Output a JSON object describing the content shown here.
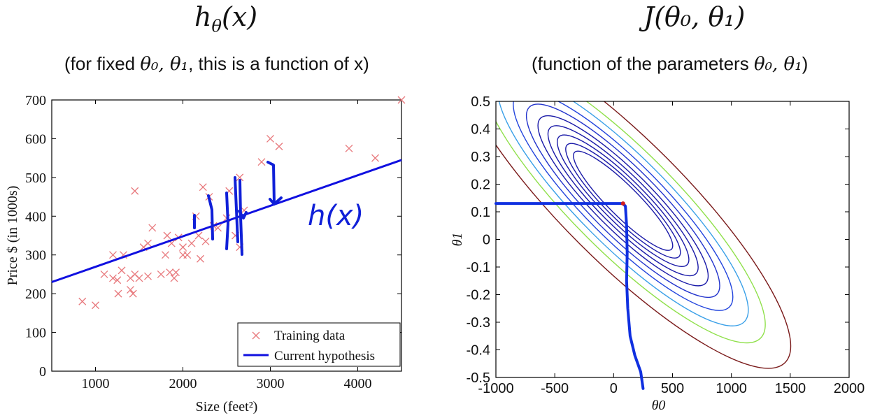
{
  "left": {
    "title": "hθ(x)",
    "subtitle_pre": "(for fixed ",
    "subtitle_theta": "θ₀, θ₁",
    "subtitle_post": ", this is a function of x)"
  },
  "right": {
    "title": "J(θ₀, θ₁)",
    "subtitle_pre": "(function of the parameters ",
    "subtitle_theta": "θ₀, θ₁",
    "subtitle_post": ")"
  },
  "chart_data": [
    {
      "type": "scatter",
      "xlabel": "Size (feet²)",
      "ylabel": "Price $ (in 1000s)",
      "xlim": [
        500,
        4500
      ],
      "ylim": [
        0,
        700
      ],
      "xticks": [
        1000,
        2000,
        3000,
        4000
      ],
      "yticks": [
        0,
        100,
        200,
        300,
        400,
        500,
        600,
        700
      ],
      "series": [
        {
          "name": "Training data",
          "marker": "x",
          "color": "#e8797d",
          "points": [
            [
              850,
              180
            ],
            [
              1000,
              170
            ],
            [
              1100,
              250
            ],
            [
              1200,
              300
            ],
            [
              1200,
              240
            ],
            [
              1250,
              235
            ],
            [
              1260,
              200
            ],
            [
              1300,
              260
            ],
            [
              1320,
              300
            ],
            [
              1400,
              210
            ],
            [
              1400,
              240
            ],
            [
              1430,
              200
            ],
            [
              1450,
              465
            ],
            [
              1450,
              250
            ],
            [
              1500,
              240
            ],
            [
              1550,
              320
            ],
            [
              1600,
              330
            ],
            [
              1600,
              245
            ],
            [
              1650,
              370
            ],
            [
              1750,
              250
            ],
            [
              1800,
              300
            ],
            [
              1820,
              350
            ],
            [
              1850,
              255
            ],
            [
              1870,
              330
            ],
            [
              1900,
              240
            ],
            [
              1920,
              255
            ],
            [
              1950,
              345
            ],
            [
              2000,
              300
            ],
            [
              2000,
              320
            ],
            [
              2050,
              300
            ],
            [
              2100,
              330
            ],
            [
              2150,
              400
            ],
            [
              2180,
              350
            ],
            [
              2200,
              290
            ],
            [
              2230,
              475
            ],
            [
              2260,
              335
            ],
            [
              2300,
              450
            ],
            [
              2350,
              375
            ],
            [
              2400,
              370
            ],
            [
              2500,
              395
            ],
            [
              2530,
              465
            ],
            [
              2600,
              350
            ],
            [
              2650,
              500
            ],
            [
              2650,
              320
            ],
            [
              2700,
              415
            ],
            [
              2900,
              540
            ],
            [
              3000,
              600
            ],
            [
              3100,
              580
            ],
            [
              3900,
              575
            ],
            [
              4200,
              550
            ],
            [
              4500,
              700
            ]
          ]
        },
        {
          "name": "Current hypothesis",
          "type": "line",
          "color": "#1010e0",
          "x": [
            500,
            4500
          ],
          "y": [
            230,
            545
          ]
        }
      ],
      "legend": "bottom-right",
      "annotation": "h(x)"
    },
    {
      "type": "contour",
      "xlabel": "θ0",
      "ylabel": "θ1",
      "xlim": [
        -1000,
        2000
      ],
      "ylim": [
        -0.5,
        0.5
      ],
      "xticks": [
        -1000,
        -500,
        0,
        500,
        1000,
        1500,
        2000
      ],
      "xtick_labels": [
        "-1000",
        "-500",
        "0",
        "500",
        "1000",
        "1500",
        "2000"
      ],
      "yticks": [
        -0.5,
        -0.4,
        -0.3,
        -0.2,
        -0.1,
        0,
        0.1,
        0.2,
        0.3,
        0.4,
        0.5
      ],
      "ytick_labels": [
        "-0.5",
        "-0.4",
        "-0.3",
        "-0.2",
        "-0.1",
        "0",
        "0.1",
        "0.2",
        "0.3",
        "0.4",
        "0.5"
      ],
      "center": [
        80,
        0.14
      ],
      "contour_levels": [
        {
          "scale": 0.12,
          "color": "#1a1aa8"
        },
        {
          "scale": 0.22,
          "color": "#1a1aa8"
        },
        {
          "scale": 0.33,
          "color": "#1a1aa8"
        },
        {
          "scale": 0.45,
          "color": "#1a1aa8"
        },
        {
          "scale": 0.58,
          "color": "#1a1aa8"
        },
        {
          "scale": 0.73,
          "color": "#2233cc"
        },
        {
          "scale": 0.9,
          "color": "#2244dd"
        },
        {
          "scale": 1.1,
          "color": "#3aa0e8"
        },
        {
          "scale": 1.32,
          "color": "#8fe04a"
        },
        {
          "scale": 1.65,
          "color": "#7a1a1a"
        }
      ],
      "path_color": "#1030e0",
      "descent_path": [
        [
          -1000,
          0.13
        ],
        [
          -750,
          0.13
        ],
        [
          -500,
          0.13
        ],
        [
          -200,
          0.13
        ],
        [
          0,
          0.13
        ],
        [
          80,
          0.13
        ],
        [
          100,
          0.12
        ],
        [
          110,
          0.05
        ],
        [
          115,
          -0.05
        ],
        [
          110,
          -0.15
        ],
        [
          120,
          -0.25
        ],
        [
          140,
          -0.35
        ],
        [
          180,
          -0.42
        ],
        [
          230,
          -0.48
        ],
        [
          250,
          -0.54
        ]
      ]
    }
  ]
}
